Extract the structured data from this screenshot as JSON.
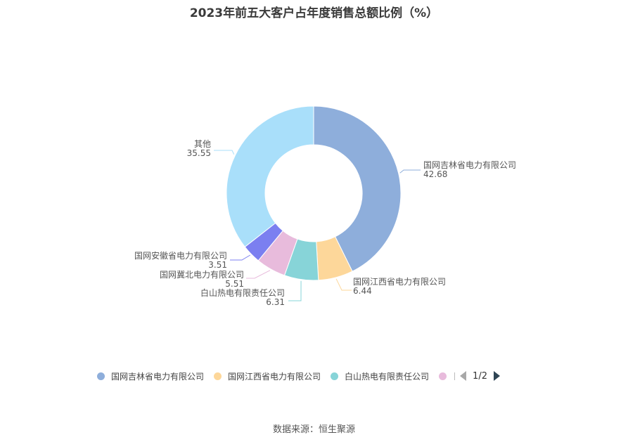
{
  "chart_data": {
    "type": "pie",
    "title": "2023年前五大客户占年度销售总额比例（%）",
    "slices": [
      {
        "name": "国网吉林省电力有限公司",
        "value": 42.68,
        "display": "42.68",
        "color": "#8eaedb"
      },
      {
        "name": "国网江西省电力有限公司",
        "value": 6.44,
        "display": "6.44",
        "color": "#fdd79a"
      },
      {
        "name": "白山热电有限责任公司",
        "value": 6.31,
        "display": "6.31",
        "color": "#87d4d8"
      },
      {
        "name": "国网冀北电力有限公司",
        "value": 5.51,
        "display": "5.51",
        "color": "#e8bbdc"
      },
      {
        "name": "国网安徽省电力有限公司",
        "value": 3.51,
        "display": "3.51",
        "color": "#7b7ff0"
      },
      {
        "name": "其他",
        "value": 35.55,
        "display": "35.55",
        "color": "#a9dffa"
      }
    ],
    "legend": {
      "placement": "bottom",
      "visible_items": [
        "国网吉林省电力有限公司",
        "国网江西省电力有限公司",
        "白山热电有限责任公司"
      ],
      "partial_item_color": "#e8bbdc",
      "page": "1/2"
    }
  },
  "source": "数据来源：恒生聚源"
}
